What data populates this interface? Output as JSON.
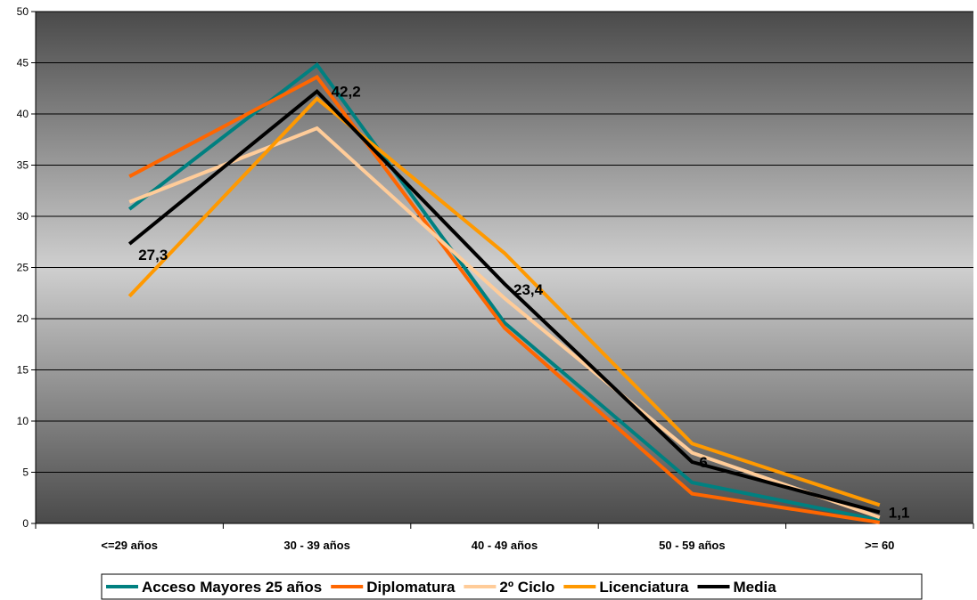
{
  "chart_data": {
    "type": "line",
    "categories": [
      "<=29 años",
      "30 - 39 años",
      "40 - 49 años",
      "50 - 59 años",
      ">= 60"
    ],
    "ylim": [
      0,
      50
    ],
    "yticks": [
      0,
      5,
      10,
      15,
      20,
      25,
      30,
      35,
      40,
      45,
      50
    ],
    "grid": true,
    "legend_position": "bottom",
    "series": [
      {
        "name": "Acceso Mayores 25 años",
        "color": "#008080",
        "values": [
          30.7,
          44.8,
          19.6,
          4.0,
          0.3
        ]
      },
      {
        "name": "Diplomatura",
        "color": "#FF6600",
        "values": [
          33.9,
          43.6,
          19.1,
          2.9,
          0.1
        ]
      },
      {
        "name": "2º Ciclo",
        "color": "#FFCC99",
        "values": [
          31.4,
          38.6,
          22.0,
          6.9,
          0.6
        ]
      },
      {
        "name": "Licenciatura",
        "color": "#FF9900",
        "values": [
          22.2,
          41.5,
          26.4,
          7.8,
          1.8
        ]
      },
      {
        "name": "Media",
        "color": "#000000",
        "values": [
          27.3,
          42.2,
          23.4,
          6.0,
          1.1
        ]
      }
    ],
    "data_labels": [
      {
        "series": "Media",
        "category": "<=29 años",
        "text": "27,3"
      },
      {
        "series": "Media",
        "category": "30 - 39 años",
        "text": "42,2"
      },
      {
        "series": "Media",
        "category": "40 - 49 años",
        "text": "23,4"
      },
      {
        "series": "Media",
        "category": "50 - 59 años",
        "text": "6"
      },
      {
        "series": "Media",
        "category": ">= 60",
        "text": "1,1"
      }
    ]
  }
}
